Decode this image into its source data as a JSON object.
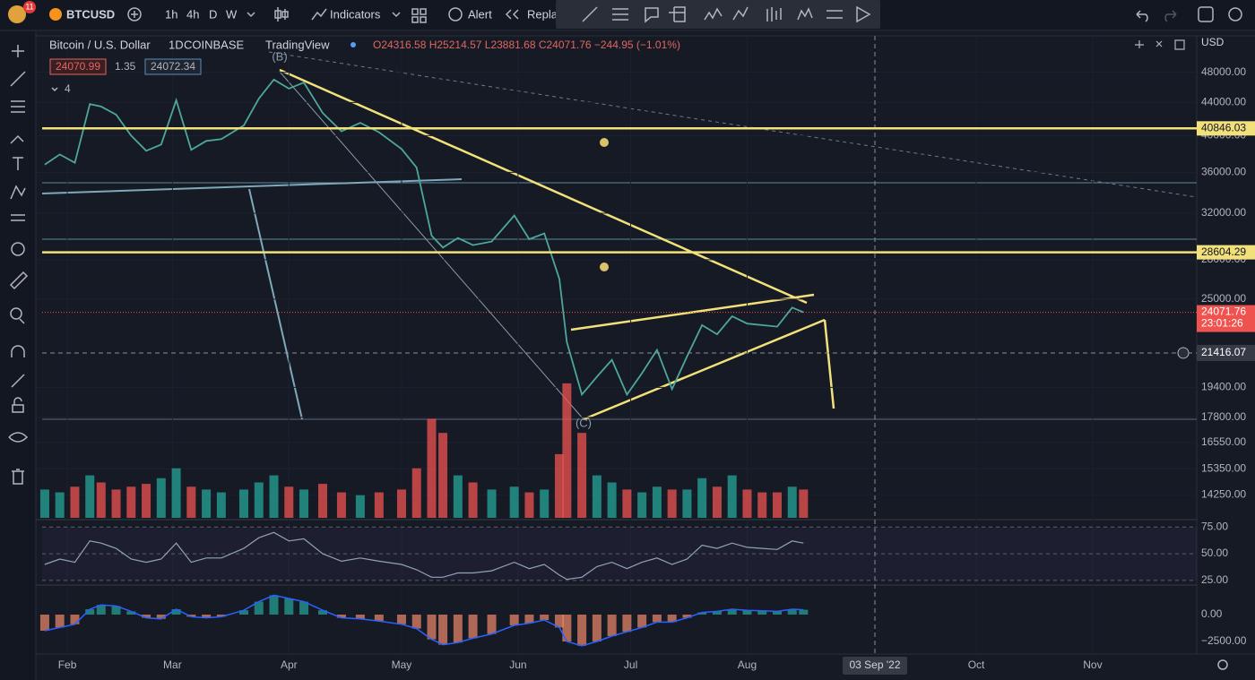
{
  "toolbar": {
    "badge": "11",
    "symbol": "BTCUSD",
    "intervals": [
      "1h",
      "4h",
      "D",
      "W"
    ],
    "indicators": "Indicators",
    "alert": "Alert",
    "replay": "Repla"
  },
  "legend": {
    "title": "Bitcoin / U.S. Dollar",
    "interval": "1D",
    "exchange": "COINBASE",
    "source": "TradingView",
    "ohlc": "O24316.58 H25214.57 L23881.68 C24071.76 −244.95 (−1.01%)",
    "bid": "24070.99",
    "spread": "1.35",
    "ask": "24072.34",
    "indicator_count": "4"
  },
  "chart_data": {
    "type": "line",
    "currency": "USD",
    "log_scale": true,
    "color": "#4da79b",
    "up_color": "#26a69a",
    "down_color": "#ef5350",
    "x": [
      -6,
      -2,
      2,
      6,
      9,
      13,
      17,
      21,
      25,
      29,
      33,
      37,
      41,
      47,
      51,
      55,
      59,
      63,
      68,
      73,
      78,
      83,
      89,
      93,
      97,
      100,
      104,
      108,
      113,
      119,
      123,
      127,
      131,
      133,
      137,
      141,
      145,
      149,
      153,
      157,
      161,
      165,
      169,
      173,
      177,
      181,
      185,
      189,
      193,
      196
    ],
    "values": [
      36800,
      37900,
      37000,
      43800,
      43500,
      42500,
      40000,
      38300,
      39000,
      44300,
      38400,
      39400,
      39600,
      41200,
      44500,
      47000,
      45800,
      46600,
      42700,
      40500,
      41500,
      40400,
      38500,
      36500,
      30000,
      29000,
      29800,
      29200,
      29500,
      31800,
      29700,
      30200,
      26500,
      22100,
      19000,
      20000,
      21000,
      19000,
      20200,
      21600,
      19300,
      21200,
      23200,
      22600,
      23800,
      23300,
      23200,
      23100,
      24400,
      24071.76
    ],
    "volumes": [
      20,
      18,
      22,
      30,
      25,
      20,
      22,
      24,
      28,
      35,
      22,
      20,
      18,
      20,
      25,
      30,
      22,
      20,
      24,
      18,
      16,
      18,
      20,
      35,
      70,
      60,
      30,
      25,
      20,
      22,
      18,
      20,
      45,
      95,
      60,
      30,
      25,
      20,
      18,
      22,
      20,
      20,
      28,
      22,
      30,
      20,
      18,
      18,
      22,
      20
    ],
    "volume_lim": [
      0,
      100
    ],
    "xlim": [
      -6.7,
      300.7
    ],
    "xticks": [
      {
        "value": 0,
        "label": "Feb"
      },
      {
        "value": 28,
        "label": "Mar"
      },
      {
        "value": 59,
        "label": "Apr"
      },
      {
        "value": 89,
        "label": "May"
      },
      {
        "value": 120,
        "label": "Jun"
      },
      {
        "value": 150,
        "label": "Jul"
      },
      {
        "value": 181,
        "label": "Aug"
      },
      {
        "value": 242,
        "label": "Oct"
      },
      {
        "value": 273,
        "label": "Nov"
      }
    ],
    "crosshair_date": "03 Sep '22",
    "ylim": [
      13330,
      53300
    ],
    "yticks": [
      {
        "value": 48000,
        "label": "48000.00"
      },
      {
        "value": 44000,
        "label": "44000.00"
      },
      {
        "value": 40000,
        "label": "40000.00"
      },
      {
        "value": 36000,
        "label": "36000.00"
      },
      {
        "value": 32000,
        "label": "32000.00"
      },
      {
        "value": 28000,
        "label": "28000.00"
      },
      {
        "value": 25000,
        "label": "25000.00"
      },
      {
        "value": 19400,
        "label": "19400.00"
      },
      {
        "value": 17800,
        "label": "17800.00"
      },
      {
        "value": 16550,
        "label": "16550.00"
      },
      {
        "value": 15350,
        "label": "15350.00"
      },
      {
        "value": 14250,
        "label": "14250.00"
      }
    ],
    "levels": [
      40846.03,
      28604.29
    ],
    "last_price": 24071.76,
    "countdown": "23:01:26",
    "crosshair_price": 21416.07,
    "wave_labels": [
      "(B)",
      "(C)"
    ],
    "rsi": {
      "values": [
        40,
        45,
        42,
        62,
        60,
        55,
        45,
        42,
        45,
        60,
        42,
        46,
        46,
        55,
        65,
        70,
        62,
        64,
        50,
        43,
        46,
        43,
        40,
        35,
        28,
        28,
        32,
        32,
        34,
        42,
        36,
        40,
        30,
        26,
        28,
        38,
        42,
        36,
        42,
        46,
        40,
        45,
        58,
        55,
        60,
        56,
        55,
        54,
        62,
        60
      ],
      "ylim": [
        21.5,
        80.3
      ],
      "yticks": [
        {
          "value": 75,
          "label": "75.00"
        },
        {
          "value": 50,
          "label": "50.00"
        },
        {
          "value": 25,
          "label": "25.00"
        }
      ]
    },
    "macd": {
      "values": [
        -1500,
        -1200,
        -900,
        500,
        900,
        800,
        300,
        -300,
        -400,
        500,
        -200,
        -300,
        -200,
        400,
        1200,
        1800,
        1500,
        1200,
        400,
        -300,
        -400,
        -600,
        -900,
        -1300,
        -2300,
        -2800,
        -2600,
        -2200,
        -1800,
        -1000,
        -800,
        -500,
        -1200,
        -2500,
        -2900,
        -2500,
        -2000,
        -1600,
        -1200,
        -700,
        -700,
        -300,
        200,
        300,
        500,
        400,
        350,
        300,
        500,
        450
      ],
      "ylim": [
        -3500,
        2583
      ],
      "yticks": [
        {
          "value": 0,
          "label": "0.00"
        },
        {
          "value": -2500,
          "label": "−2500.00"
        }
      ]
    }
  }
}
